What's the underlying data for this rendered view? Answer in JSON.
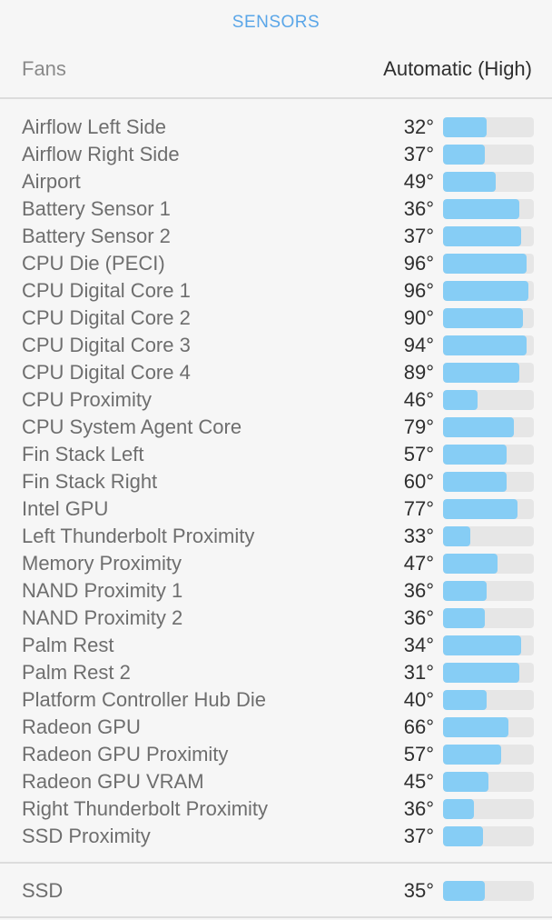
{
  "header": {
    "title": "SENSORS"
  },
  "fans": {
    "label": "Fans",
    "value": "Automatic (High)"
  },
  "sensors": [
    {
      "name": "Airflow Left Side",
      "temp": "32°",
      "level": 0.48
    },
    {
      "name": "Airflow Right Side",
      "temp": "37°",
      "level": 0.46
    },
    {
      "name": "Airport",
      "temp": "49°",
      "level": 0.58
    },
    {
      "name": "Battery Sensor 1",
      "temp": "36°",
      "level": 0.84
    },
    {
      "name": "Battery Sensor 2",
      "temp": "37°",
      "level": 0.86
    },
    {
      "name": "CPU Die (PECI)",
      "temp": "96°",
      "level": 0.92
    },
    {
      "name": "CPU Digital Core 1",
      "temp": "96°",
      "level": 0.94
    },
    {
      "name": "CPU Digital Core 2",
      "temp": "90°",
      "level": 0.88
    },
    {
      "name": "CPU Digital Core 3",
      "temp": "94°",
      "level": 0.92
    },
    {
      "name": "CPU Digital Core 4",
      "temp": "89°",
      "level": 0.84
    },
    {
      "name": "CPU Proximity",
      "temp": "46°",
      "level": 0.38
    },
    {
      "name": "CPU System Agent Core",
      "temp": "79°",
      "level": 0.78
    },
    {
      "name": "Fin Stack Left",
      "temp": "57°",
      "level": 0.7
    },
    {
      "name": "Fin Stack Right",
      "temp": "60°",
      "level": 0.7
    },
    {
      "name": "Intel GPU",
      "temp": "77°",
      "level": 0.82
    },
    {
      "name": "Left Thunderbolt Proximity",
      "temp": "33°",
      "level": 0.3
    },
    {
      "name": "Memory Proximity",
      "temp": "47°",
      "level": 0.6
    },
    {
      "name": "NAND Proximity 1",
      "temp": "36°",
      "level": 0.48
    },
    {
      "name": "NAND Proximity 2",
      "temp": "36°",
      "level": 0.46
    },
    {
      "name": "Palm Rest",
      "temp": "34°",
      "level": 0.86
    },
    {
      "name": "Palm Rest 2",
      "temp": "31°",
      "level": 0.84
    },
    {
      "name": "Platform Controller Hub Die",
      "temp": "40°",
      "level": 0.48
    },
    {
      "name": "Radeon GPU",
      "temp": "66°",
      "level": 0.72
    },
    {
      "name": "Radeon GPU Proximity",
      "temp": "57°",
      "level": 0.64
    },
    {
      "name": "Radeon GPU VRAM",
      "temp": "45°",
      "level": 0.5
    },
    {
      "name": "Right Thunderbolt Proximity",
      "temp": "36°",
      "level": 0.34
    },
    {
      "name": "SSD Proximity",
      "temp": "37°",
      "level": 0.44
    }
  ],
  "ssd": {
    "name": "SSD",
    "temp": "35°",
    "level": 0.46
  },
  "colors": {
    "accent": "#5aa6e8",
    "bar_fill": "#86cdf5",
    "bar_track": "#e6e6e6",
    "background": "#f6f6f6"
  }
}
